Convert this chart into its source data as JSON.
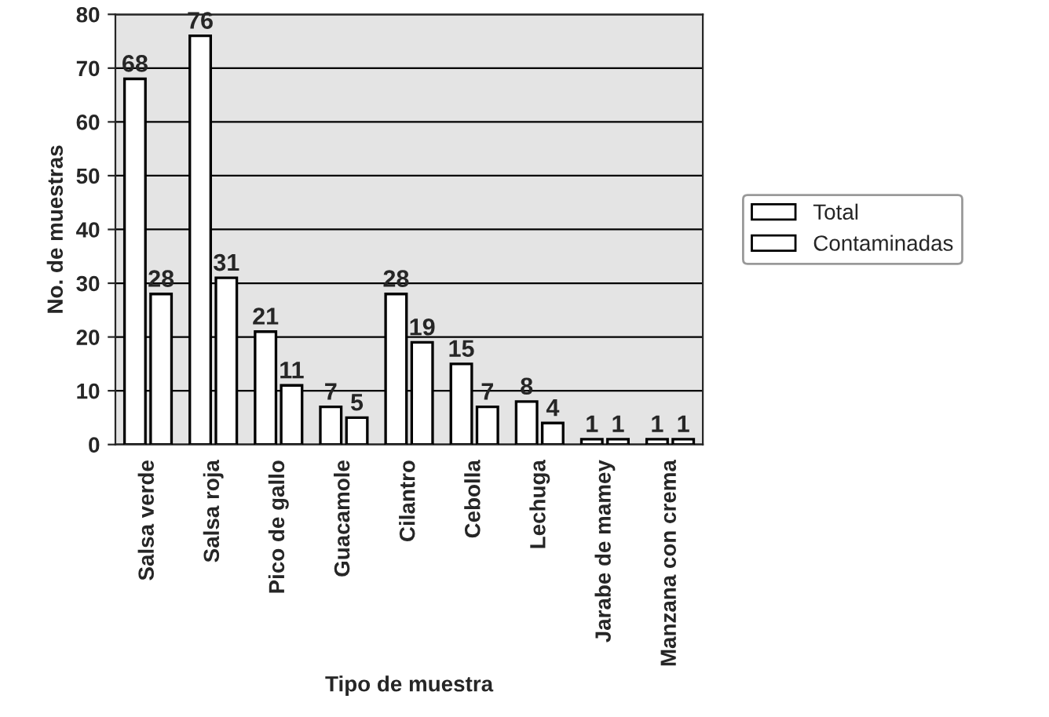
{
  "chart_data": {
    "type": "bar",
    "xlabel": "Tipo de muestra",
    "ylabel": "No. de muestras",
    "categories": [
      "Salsa verde",
      "Salsa roja",
      "Pico de gallo",
      "Guacamole",
      "Cilantro",
      "Cebolla",
      "Lechuga",
      "Jarabe de mamey",
      "Manzana con crema"
    ],
    "series": [
      {
        "name": "Total",
        "color": "#ffffff",
        "values": [
          68,
          76,
          21,
          7,
          28,
          15,
          8,
          1,
          1
        ]
      },
      {
        "name": "Contaminadas",
        "color": "#ffffff",
        "values": [
          28,
          31,
          11,
          5,
          19,
          7,
          4,
          1,
          1
        ]
      }
    ],
    "ylim": [
      0,
      80
    ],
    "yticks": [
      0,
      10,
      20,
      30,
      40,
      50,
      60,
      70,
      80
    ],
    "grid": "y",
    "legend": "right",
    "data_labels": true
  }
}
